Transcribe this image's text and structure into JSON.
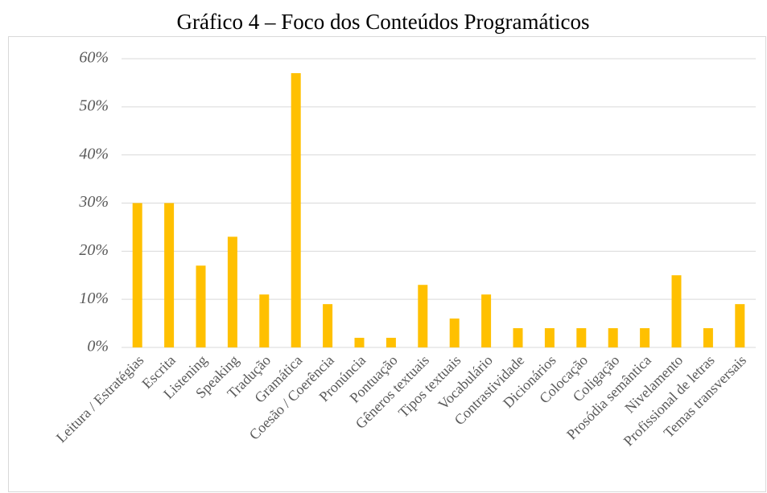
{
  "chart_data": {
    "type": "bar",
    "title": "Gráfico 4 – Foco dos Conteúdos Programáticos",
    "categories": [
      "Leitura / Estratégias",
      "Escrita",
      "Listening",
      "Speaking",
      "Tradução",
      "Gramática",
      "Coesão / Coerência",
      "Pronúncia",
      "Pontuação",
      "Gêneros textuais",
      "Tipos textuais",
      "Vocabulário",
      "Contrastividade",
      "Dicionários",
      "Colocação",
      "Coligação",
      "Prosódia semântica",
      "Nivelamento",
      "Profissional de letras",
      "Temas transversais"
    ],
    "values": [
      30,
      30,
      17,
      23,
      11,
      57,
      9,
      2,
      2,
      13,
      6,
      11,
      4,
      4,
      4,
      4,
      4,
      15,
      4,
      9
    ],
    "color": "#ffc000",
    "ylim": [
      0,
      60
    ],
    "yticks": [
      {
        "value": 0,
        "label": "0%"
      },
      {
        "value": 10,
        "label": "10%"
      },
      {
        "value": 20,
        "label": "20%"
      },
      {
        "value": 30,
        "label": "30%"
      },
      {
        "value": 40,
        "label": "40%"
      },
      {
        "value": 50,
        "label": "50%"
      },
      {
        "value": 60,
        "label": "60%"
      }
    ],
    "grid": true
  }
}
